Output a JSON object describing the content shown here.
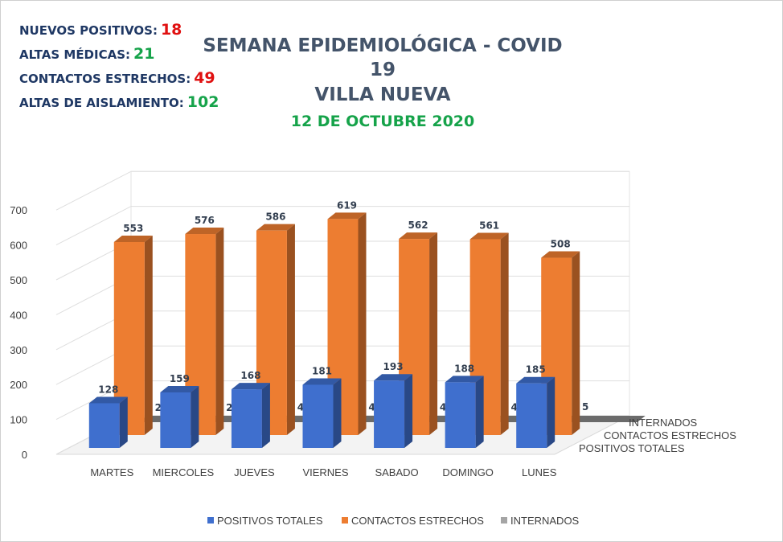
{
  "stats": [
    {
      "label": "NUEVOS POSITIVOS:",
      "value": "18",
      "color": "#e01010"
    },
    {
      "label": "ALTAS MÉDICAS:",
      "value": "21",
      "color": "#16a34a"
    },
    {
      "label": "CONTACTOS ESTRECHOS:",
      "value": "49",
      "color": "#e01010"
    },
    {
      "label": "ALTAS DE AISLAMIENTO:",
      "value": "102",
      "color": "#16a34a"
    }
  ],
  "header": {
    "line1": "SEMANA EPIDEMIOLÓGICA - COVID 19",
    "line2": "VILLA NUEVA",
    "line3": "12 DE OCTUBRE 2020"
  },
  "chart_data": {
    "type": "bar",
    "title": "",
    "categories": [
      "MARTES",
      "MIERCOLES",
      "JUEVES",
      "VIERNES",
      "SABADO",
      "DOMINGO",
      "LUNES"
    ],
    "series": [
      {
        "name": "POSITIVOS TOTALES",
        "values": [
          128,
          159,
          168,
          181,
          193,
          188,
          185
        ],
        "color": "#3f6fce"
      },
      {
        "name": "CONTACTOS ESTRECHOS",
        "values": [
          553,
          576,
          586,
          619,
          562,
          561,
          508
        ],
        "color": "#ed7d31"
      },
      {
        "name": "INTERNADOS",
        "values": [
          2,
          2,
          4,
          4,
          4,
          4,
          5
        ],
        "color": "#a5a5a5"
      }
    ],
    "depth_labels": [
      "INTERNADOS",
      "CONTACTOS ESTRECHOS",
      "POSITIVOS TOTALES"
    ],
    "ylim": [
      0,
      700
    ],
    "yticks": [
      0,
      100,
      200,
      300,
      400,
      500,
      600,
      700
    ],
    "grid": true,
    "legend": "bottom",
    "style": "3d"
  }
}
